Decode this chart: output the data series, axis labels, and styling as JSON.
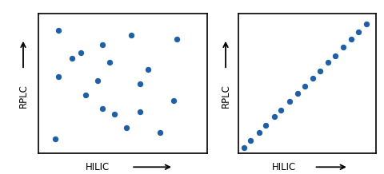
{
  "left_scatter_x": [
    0.12,
    0.38,
    0.55,
    0.82,
    0.2,
    0.42,
    0.65,
    0.1,
    0.35,
    0.6,
    0.12,
    0.38,
    0.6,
    0.8,
    0.28,
    0.52,
    0.72,
    0.45,
    0.25
  ],
  "left_scatter_y": [
    0.88,
    0.78,
    0.85,
    0.82,
    0.68,
    0.65,
    0.6,
    0.1,
    0.52,
    0.5,
    0.55,
    0.32,
    0.3,
    0.38,
    0.42,
    0.18,
    0.15,
    0.28,
    0.72
  ],
  "right_scatter_x": [
    0.04,
    0.09,
    0.15,
    0.2,
    0.26,
    0.31,
    0.37,
    0.43,
    0.48,
    0.54,
    0.59,
    0.65,
    0.7,
    0.76,
    0.82,
    0.87,
    0.93
  ],
  "right_scatter_y": [
    0.04,
    0.09,
    0.15,
    0.2,
    0.26,
    0.31,
    0.37,
    0.43,
    0.48,
    0.54,
    0.59,
    0.65,
    0.7,
    0.76,
    0.82,
    0.87,
    0.93
  ],
  "dot_color": "#1F5FA6",
  "dot_size": 28,
  "box_color": "black",
  "bg_color": "white",
  "xlabel": "HILIC",
  "ylabel": "RPLC",
  "label_fontsize": 8.5,
  "spine_lw": 1.2
}
